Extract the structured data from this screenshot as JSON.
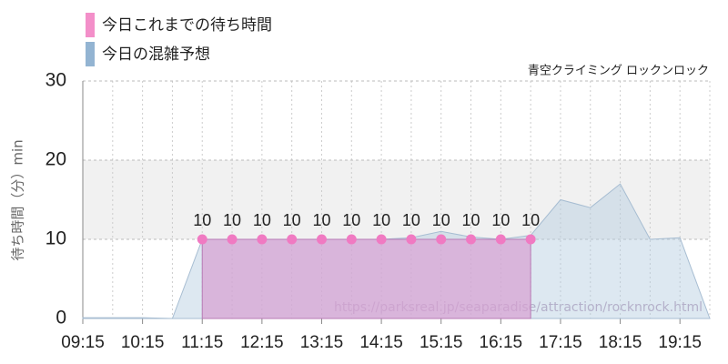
{
  "chart_data": {
    "type": "area",
    "subtitle": "青空クライミング ロックンロック",
    "ylabel": "待ち時間（分）min",
    "annotation": "https://parksreal.jp/seaparadise/attraction/rocknrock.html",
    "x": [
      "09:15",
      "09:45",
      "10:15",
      "10:45",
      "11:15",
      "11:45",
      "12:15",
      "12:45",
      "13:15",
      "13:45",
      "14:15",
      "14:45",
      "15:15",
      "15:45",
      "16:15",
      "16:45",
      "17:15",
      "17:45",
      "18:15",
      "18:45",
      "19:15",
      "19:45"
    ],
    "xticks": [
      "09:15",
      "10:15",
      "11:15",
      "12:15",
      "13:15",
      "14:15",
      "15:15",
      "16:15",
      "17:15",
      "18:15",
      "19:15"
    ],
    "ylim": [
      0,
      30
    ],
    "yticks": [
      0,
      10,
      20,
      30
    ],
    "highlight_band": [
      10,
      20
    ],
    "grid": true,
    "series": [
      {
        "name": "今日これまでの待ち時間",
        "color": "#f38fc9",
        "values": [
          null,
          null,
          null,
          null,
          10,
          10,
          10,
          10,
          10,
          10,
          10,
          10,
          10,
          10,
          10,
          10,
          null,
          null,
          null,
          null,
          null,
          null
        ]
      },
      {
        "name": "今日の混雑予想",
        "color": "#93b4d2",
        "values": [
          0.1,
          0.1,
          0.1,
          0,
          10,
          10,
          10,
          10,
          10,
          10,
          10,
          10.2,
          11,
          10.3,
          10,
          10.5,
          15,
          14,
          17,
          10,
          10.2,
          0
        ]
      }
    ]
  }
}
